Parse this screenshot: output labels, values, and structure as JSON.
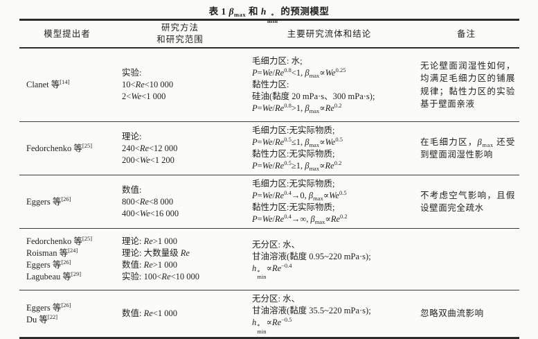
{
  "page": {
    "background": "#fbfbf9",
    "text_color": "#1f1f1f",
    "rule_color": "#2c2c2c"
  },
  "title": {
    "tokens": [
      {
        "t": "表 1  "
      },
      {
        "i": "β"
      },
      {
        "sub": "max"
      },
      {
        "t": " 和 "
      },
      {
        "stk": [
          "h",
          "*",
          "min"
        ]
      },
      {
        "t": " 的预测模型"
      }
    ]
  },
  "table": {
    "header": {
      "cells": [
        {
          "blocks": [
            [
              {
                "t": "模型提出者"
              }
            ]
          ]
        },
        {
          "blocks": [
            [
              {
                "t": "研究方法"
              }
            ],
            [
              {
                "t": "和研究范围"
              }
            ]
          ]
        },
        {
          "blocks": [
            [
              {
                "t": "主要研究流体和结论"
              }
            ]
          ]
        },
        {
          "blocks": [
            [
              {
                "t": "备注"
              }
            ]
          ]
        }
      ]
    },
    "rows": [
      {
        "cells": [
          {
            "blocks": [
              [
                {
                  "t": "Clanet 等"
                },
                {
                  "sup": "[14]"
                }
              ]
            ]
          },
          {
            "blocks": [
              [
                {
                  "t": "实验:"
                }
              ],
              [
                {
                  "t": "10<"
                },
                {
                  "i": "Re"
                },
                {
                  "t": "<10 000"
                }
              ],
              [
                {
                  "t": "2<"
                },
                {
                  "i": "We"
                },
                {
                  "t": "<1 000"
                }
              ]
            ]
          },
          {
            "blocks": [
              [
                {
                  "t": "毛细力区: 水;"
                }
              ],
              [
                {
                  "i": "P"
                },
                {
                  "t": "="
                },
                {
                  "i": "We"
                },
                {
                  "t": "/"
                },
                {
                  "i": "Re"
                },
                {
                  "sup": "0.8"
                },
                {
                  "t": "<1, "
                },
                {
                  "i": "β"
                },
                {
                  "sub": "max"
                },
                {
                  "t": "∝"
                },
                {
                  "i": "We"
                },
                {
                  "sup": "0.25"
                }
              ],
              [
                {
                  "t": "黏性力区:"
                }
              ],
              [
                {
                  "t": "硅油(黏度 20 mPa·s、300 mPa·s);"
                }
              ],
              [
                {
                  "i": "P"
                },
                {
                  "t": "="
                },
                {
                  "i": "We"
                },
                {
                  "t": "/"
                },
                {
                  "i": "Re"
                },
                {
                  "sup": "0.8"
                },
                {
                  "t": ">1, "
                },
                {
                  "i": "β"
                },
                {
                  "sub": "max"
                },
                {
                  "t": "∝"
                },
                {
                  "i": "Re"
                },
                {
                  "sup": "0.2"
                }
              ]
            ]
          },
          {
            "blocks": [
              [
                {
                  "t": "无论壁面润湿性如何，均满足毛细力区的铺展规律；黏性力区的实验基于壁面亲液"
                }
              ]
            ]
          }
        ]
      },
      {
        "cells": [
          {
            "blocks": [
              [
                {
                  "t": "Fedorchenko 等"
                },
                {
                  "sup": "[25]"
                }
              ]
            ]
          },
          {
            "blocks": [
              [
                {
                  "t": "理论:"
                }
              ],
              [
                {
                  "t": "240<"
                },
                {
                  "i": "Re"
                },
                {
                  "t": "<12 000"
                }
              ],
              [
                {
                  "t": "200<"
                },
                {
                  "i": "We"
                },
                {
                  "t": "<1 200"
                }
              ]
            ]
          },
          {
            "blocks": [
              [
                {
                  "t": "毛细力区:无实际物质;"
                }
              ],
              [
                {
                  "i": "P"
                },
                {
                  "t": "="
                },
                {
                  "i": "We"
                },
                {
                  "t": "/"
                },
                {
                  "i": "Re"
                },
                {
                  "sup": "0.5"
                },
                {
                  "t": "≤1, "
                },
                {
                  "i": "β"
                },
                {
                  "sub": "max"
                },
                {
                  "t": "∝"
                },
                {
                  "i": "We"
                },
                {
                  "sup": "0.5"
                }
              ],
              [
                {
                  "t": "黏性力区:无实际物质;"
                }
              ],
              [
                {
                  "i": "P"
                },
                {
                  "t": "="
                },
                {
                  "i": "We"
                },
                {
                  "t": "/"
                },
                {
                  "i": "Re"
                },
                {
                  "sup": "0.5"
                },
                {
                  "t": "≥1, "
                },
                {
                  "i": "β"
                },
                {
                  "sub": "max"
                },
                {
                  "t": "∝"
                },
                {
                  "i": "Re"
                },
                {
                  "sup": "0.2"
                }
              ]
            ]
          },
          {
            "blocks": [
              [
                {
                  "t": "在毛细力区，"
                },
                {
                  "i": "β"
                },
                {
                  "sub": "max"
                },
                {
                  "t": " 还受到壁面润湿性影响"
                }
              ]
            ]
          }
        ]
      },
      {
        "cells": [
          {
            "blocks": [
              [
                {
                  "t": "Eggers 等"
                },
                {
                  "sup": "[26]"
                }
              ]
            ]
          },
          {
            "blocks": [
              [
                {
                  "t": "数值:"
                }
              ],
              [
                {
                  "t": "800<"
                },
                {
                  "i": "Re"
                },
                {
                  "t": "<8 000"
                }
              ],
              [
                {
                  "t": "400<"
                },
                {
                  "i": "We"
                },
                {
                  "t": "<16 000"
                }
              ]
            ]
          },
          {
            "blocks": [
              [
                {
                  "t": "毛细力区:无实际物质;"
                }
              ],
              [
                {
                  "i": "P"
                },
                {
                  "t": "="
                },
                {
                  "i": "We"
                },
                {
                  "t": "/"
                },
                {
                  "i": "Re"
                },
                {
                  "sup": "0.4"
                },
                {
                  "t": "→0, "
                },
                {
                  "i": "β"
                },
                {
                  "sub": "max"
                },
                {
                  "t": "∝"
                },
                {
                  "i": "We"
                },
                {
                  "sup": "0.5"
                }
              ],
              [
                {
                  "t": "黏性力区:无实际物质;"
                }
              ],
              [
                {
                  "i": "P"
                },
                {
                  "t": "="
                },
                {
                  "i": "We"
                },
                {
                  "t": "/"
                },
                {
                  "i": "Re"
                },
                {
                  "sup": "0.4"
                },
                {
                  "t": "→∞, "
                },
                {
                  "i": "β"
                },
                {
                  "sub": "max"
                },
                {
                  "t": "∝"
                },
                {
                  "i": "Re"
                },
                {
                  "sup": "0.2"
                }
              ]
            ]
          },
          {
            "blocks": [
              [
                {
                  "t": "不考虑空气影响，且假设壁面完全疏水"
                }
              ]
            ]
          }
        ]
      },
      {
        "cells": [
          {
            "blocks": [
              [
                {
                  "t": "Fedorchenko 等"
                },
                {
                  "sup": "[25]"
                }
              ],
              [
                {
                  "t": "Roisman 等"
                },
                {
                  "sup": "[24]"
                }
              ],
              [
                {
                  "t": "Eggers 等"
                },
                {
                  "sup": "[26]"
                }
              ],
              [
                {
                  "t": "Lagubeau 等"
                },
                {
                  "sup": "[29]"
                }
              ]
            ]
          },
          {
            "blocks": [
              [
                {
                  "t": "理论: "
                },
                {
                  "i": "Re"
                },
                {
                  "t": ">1 000"
                }
              ],
              [
                {
                  "t": "理论: 大数量级 "
                },
                {
                  "i": "Re"
                }
              ],
              [
                {
                  "t": "数值: "
                },
                {
                  "i": "Re"
                },
                {
                  "t": ">1 000"
                }
              ],
              [
                {
                  "t": "实验: 100<"
                },
                {
                  "i": "Re"
                },
                {
                  "t": "<10 000"
                }
              ]
            ]
          },
          {
            "blocks": [
              [
                {
                  "t": "无分区: 水、"
                }
              ],
              [
                {
                  "t": "甘油溶液(黏度 0.95~220 mPa·s);"
                }
              ],
              [
                {
                  "stk": [
                    "h",
                    "*",
                    "min"
                  ]
                },
                {
                  "t": "∝"
                },
                {
                  "i": "Re"
                },
                {
                  "sup": "−0.4"
                }
              ]
            ]
          },
          {
            "blocks": []
          }
        ]
      },
      {
        "cells": [
          {
            "blocks": [
              [
                {
                  "t": "Eggers 等"
                },
                {
                  "sup": "[26]"
                }
              ],
              [
                {
                  "t": "Du 等"
                },
                {
                  "sup": "[22]"
                }
              ]
            ]
          },
          {
            "blocks": [
              [
                {
                  "t": "数值: "
                },
                {
                  "i": "Re"
                },
                {
                  "t": "<1 000"
                }
              ]
            ]
          },
          {
            "blocks": [
              [
                {
                  "t": "无分区: 水、"
                }
              ],
              [
                {
                  "t": "甘油溶液(黏度 35.5~220 mPa·s);"
                }
              ],
              [
                {
                  "stk": [
                    "h",
                    "*",
                    "min"
                  ]
                },
                {
                  "t": "∝"
                },
                {
                  "i": "Re"
                },
                {
                  "sup": "−0.5"
                }
              ]
            ]
          },
          {
            "blocks": [
              [
                {
                  "t": "忽略双曲流影响"
                }
              ]
            ]
          }
        ]
      }
    ]
  }
}
